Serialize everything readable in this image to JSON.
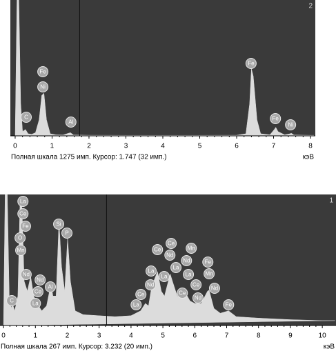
{
  "chart_data": [
    {
      "type": "area",
      "panel_label": "2",
      "caption": "Полная шкала 1275 имп. Курсор: 1.747  (32 имп.)",
      "x_unit": "кэВ",
      "color": "#dcdcdc",
      "xlim": [
        -0.13,
        8.13
      ],
      "ylim": [
        0,
        1275
      ],
      "xticks": [
        0,
        1,
        2,
        3,
        4,
        5,
        6,
        7,
        8
      ],
      "cursor": 1.747,
      "x": [
        0,
        0.05,
        0.1,
        0.15,
        0.2,
        0.28,
        0.35,
        0.45,
        0.55,
        0.65,
        0.72,
        0.78,
        0.85,
        0.95,
        1.1,
        1.3,
        1.45,
        1.5,
        1.58,
        2,
        3,
        4,
        5,
        6,
        6.25,
        6.35,
        6.4,
        6.45,
        6.55,
        6.65,
        6.9,
        7.02,
        7.06,
        7.12,
        7.3,
        7.45,
        7.48,
        7.55,
        8,
        8.1
      ],
      "values": [
        0,
        1275,
        1275,
        300,
        40,
        60,
        20,
        15,
        30,
        150,
        380,
        400,
        150,
        20,
        10,
        8,
        25,
        30,
        8,
        6,
        5,
        5,
        5,
        6,
        20,
        300,
        630,
        560,
        150,
        20,
        10,
        60,
        80,
        40,
        10,
        20,
        25,
        8,
        5,
        5
      ],
      "annotations": [
        {
          "text": "C",
          "x": 0.3
        },
        {
          "text": "Fe",
          "x": 0.75
        },
        {
          "text": "Ni",
          "x": 0.75
        },
        {
          "text": "Al",
          "x": 1.51
        },
        {
          "text": "Fe",
          "x": 6.39
        },
        {
          "text": "Fe",
          "x": 7.05
        },
        {
          "text": "Ni",
          "x": 7.46
        }
      ]
    },
    {
      "type": "area",
      "panel_label": "1",
      "caption": "Полная шкала 267 имп. Курсор: 3.232  (20 имп.)",
      "x_unit": "кэВ",
      "color": "#dcdcdc",
      "xlim": [
        -0.11,
        10.43
      ],
      "ylim": [
        0,
        267
      ],
      "xticks": [
        0,
        1,
        2,
        3,
        4,
        5,
        6,
        7,
        8,
        9,
        10
      ],
      "cursor": 3.232,
      "x": [
        0,
        0.05,
        0.12,
        0.18,
        0.25,
        0.28,
        0.35,
        0.45,
        0.52,
        0.58,
        0.65,
        0.75,
        0.85,
        0.95,
        1.05,
        1.2,
        1.35,
        1.49,
        1.55,
        1.65,
        1.74,
        1.82,
        1.92,
        2.01,
        2.1,
        2.25,
        2.5,
        3,
        3.5,
        4,
        4.3,
        4.45,
        4.55,
        4.65,
        4.83,
        4.95,
        5.05,
        5.23,
        5.3,
        5.45,
        5.6,
        5.72,
        5.85,
        6,
        6.2,
        6.4,
        6.45,
        6.6,
        6.8,
        7.06,
        7.3,
        8,
        9,
        10,
        10.4
      ],
      "values": [
        0,
        267,
        267,
        60,
        35,
        45,
        30,
        60,
        255,
        240,
        90,
        70,
        100,
        60,
        45,
        30,
        40,
        85,
        60,
        60,
        213,
        120,
        70,
        178,
        90,
        30,
        22,
        20,
        18,
        20,
        30,
        45,
        40,
        80,
        110,
        70,
        60,
        105,
        90,
        60,
        55,
        65,
        50,
        45,
        45,
        70,
        72,
        35,
        25,
        30,
        18,
        15,
        12,
        10,
        10
      ],
      "annotations": [
        {
          "text": "La",
          "x": 0.61
        },
        {
          "text": "Ce",
          "x": 0.61
        },
        {
          "text": "Fe",
          "x": 0.69
        },
        {
          "text": "O",
          "x": 0.52
        },
        {
          "text": "Mn",
          "x": 0.54
        },
        {
          "text": "Nd",
          "x": 0.71
        },
        {
          "text": "Nd",
          "x": 1.15
        },
        {
          "text": "Ce",
          "x": 1.08
        },
        {
          "text": "Al",
          "x": 1.47
        },
        {
          "text": "La",
          "x": 1.0
        },
        {
          "text": "C",
          "x": 0.26
        },
        {
          "text": "Si",
          "x": 1.73
        },
        {
          "text": "P",
          "x": 1.99
        },
        {
          "text": "Ce",
          "x": 4.83
        },
        {
          "text": "Ce",
          "x": 5.26
        },
        {
          "text": "Nd",
          "x": 5.22
        },
        {
          "text": "Mn",
          "x": 5.89
        },
        {
          "text": "Nd",
          "x": 5.74
        },
        {
          "text": "La",
          "x": 5.41
        },
        {
          "text": "La",
          "x": 4.63
        },
        {
          "text": "Fe",
          "x": 6.41
        },
        {
          "text": "Mn",
          "x": 6.45
        },
        {
          "text": "Nd",
          "x": 4.61
        },
        {
          "text": "La",
          "x": 5.04
        },
        {
          "text": "La",
          "x": 5.8
        },
        {
          "text": "Ce",
          "x": 4.31
        },
        {
          "text": "La",
          "x": 4.16
        },
        {
          "text": "Ce",
          "x": 5.61
        },
        {
          "text": "Ce",
          "x": 6.04
        },
        {
          "text": "Nd",
          "x": 6.1
        },
        {
          "text": "Nd",
          "x": 6.62
        },
        {
          "text": "Fe",
          "x": 7.06
        }
      ]
    }
  ]
}
